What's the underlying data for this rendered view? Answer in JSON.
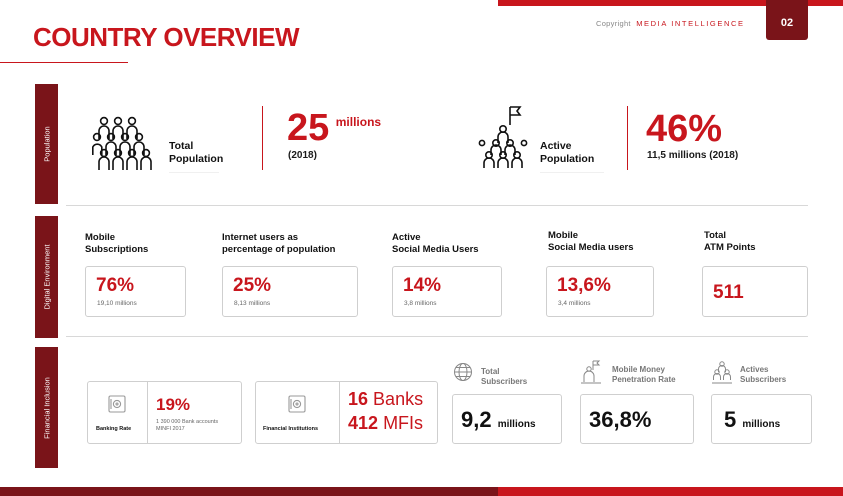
{
  "header": {
    "copyright_label": "Copyright",
    "brand": "MEDIA INTELLIGENCE",
    "page_number": "02",
    "title": "COUNTRY OVERVIEW"
  },
  "sections": {
    "population": "Population",
    "digital": "Digital Environment",
    "financial": "Financial Inclusion"
  },
  "population": {
    "total": {
      "label_line1": "Total",
      "label_line2": "Population",
      "value": "25",
      "unit": "millions",
      "year": "(2018)"
    },
    "active": {
      "label_line1": "Active",
      "label_line2": "Population",
      "value": "46%",
      "detail": "11,5 millions (2018)"
    }
  },
  "digital": {
    "mobile_subs": {
      "label_line1": "Mobile",
      "label_line2": "Subscriptions",
      "value": "76%",
      "sub": "19,10 millions"
    },
    "internet": {
      "label_line1": "Internet users as",
      "label_line2": "percentage of population",
      "value": "25%",
      "sub": "8,13 millions"
    },
    "social": {
      "label_line1": "Active",
      "label_line2": "Social Media Users",
      "value": "14%",
      "sub": "3,8 millions"
    },
    "mobile_social": {
      "label_line1": "Mobile",
      "label_line2": "Social Media users",
      "value": "13,6%",
      "sub": "3,4 millions"
    },
    "atm": {
      "label_line1": "Total",
      "label_line2": "ATM Points",
      "value": "511"
    }
  },
  "financial": {
    "banking": {
      "caption": "Banking Rate",
      "value": "19%",
      "note_line1": "1 390 000 Bank accounts",
      "note_line2": "MINFI 2017"
    },
    "institutions": {
      "caption": "Financial Institutions",
      "banks_num": "16",
      "banks_label": "Banks",
      "mfis_num": "412",
      "mfis_label": "MFIs"
    },
    "total_subscribers": {
      "label_line1": "Total",
      "label_line2": "Subscribers",
      "value": "9,2",
      "unit": "millions"
    },
    "mobile_money": {
      "label_line1": "Mobile Money",
      "label_line2": "Penetration Rate",
      "value": "36,8%"
    },
    "active_subscribers": {
      "label_line1": "Actives",
      "label_line2": "Subscribers",
      "value": "5",
      "unit": "millions"
    }
  },
  "icons": {
    "crowd": "crowd-icon",
    "flag_pyramid": "flag-pyramid-icon",
    "safe": "safe-icon",
    "accent_color": "#c8161d",
    "dark_accent_color": "#7a1419"
  }
}
